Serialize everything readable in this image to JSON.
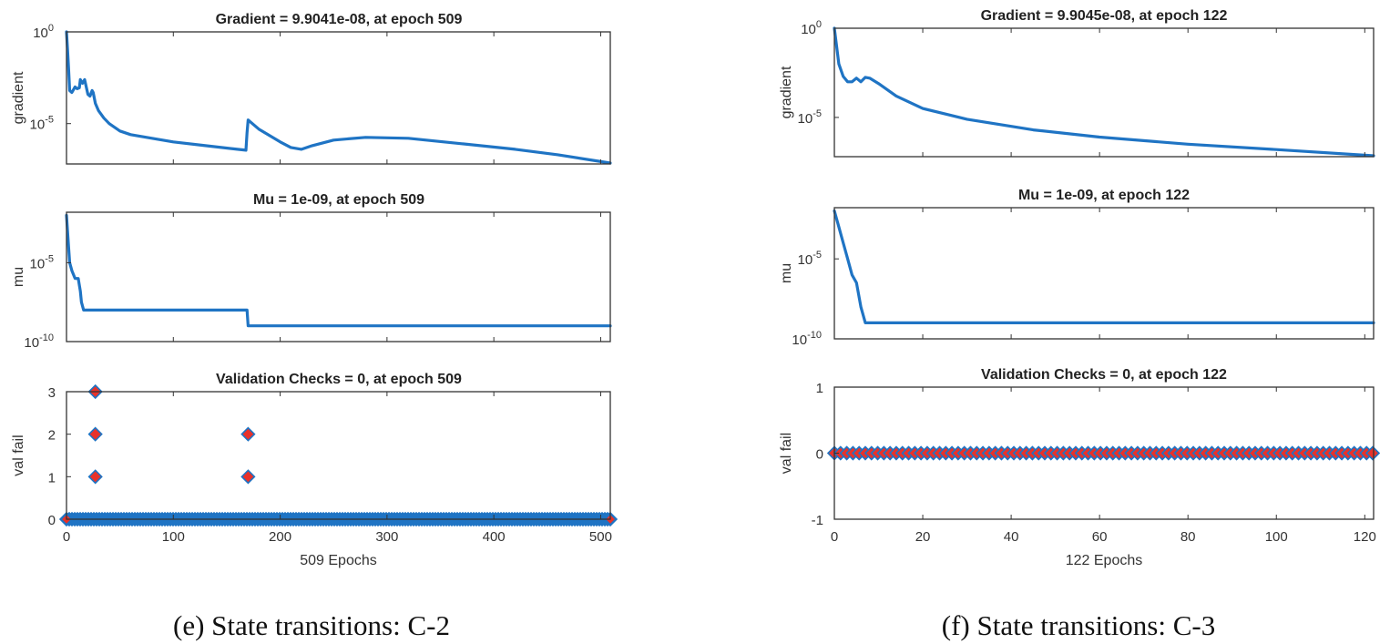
{
  "chart_data": [
    {
      "id": "e",
      "caption": "(e) State transitions: C-2",
      "xlim": [
        0,
        509
      ],
      "xticks": [
        0,
        100,
        200,
        300,
        400,
        500
      ],
      "xlabel": "509 Epochs",
      "subplots": [
        {
          "type": "line",
          "scale": "log",
          "title": "Gradient = 9.9041e-08, at epoch 509",
          "ylabel": "gradient",
          "ylim_exp": [
            -7.2,
            0
          ],
          "yticks": [
            {
              "base": "10",
              "exp": "0",
              "value_exp": 0
            },
            {
              "base": "10",
              "exp": "-5",
              "value_exp": -5
            }
          ],
          "x": [
            0,
            1,
            2,
            3,
            5,
            8,
            10,
            12,
            13,
            15,
            17,
            20,
            22,
            24,
            25,
            27,
            30,
            35,
            40,
            50,
            60,
            80,
            100,
            130,
            160,
            168,
            169,
            170,
            172,
            180,
            200,
            210,
            220,
            230,
            250,
            280,
            320,
            370,
            420,
            460,
            509
          ],
          "value_exp": [
            0,
            -1,
            -2,
            -3.2,
            -3.3,
            -3,
            -3.1,
            -3.05,
            -2.6,
            -2.8,
            -2.6,
            -3.4,
            -3.5,
            -3.2,
            -3.3,
            -3.9,
            -4.3,
            -4.7,
            -5,
            -5.4,
            -5.6,
            -5.8,
            -6,
            -6.2,
            -6.4,
            -6.45,
            -5.5,
            -4.8,
            -4.9,
            -5.3,
            -6,
            -6.3,
            -6.4,
            -6.2,
            -5.9,
            -5.75,
            -5.8,
            -6.1,
            -6.4,
            -6.7,
            -7.15
          ]
        },
        {
          "type": "line",
          "scale": "log",
          "title": "Mu = 1e-09, at epoch 509",
          "ylabel": "mu",
          "ylim_exp": [
            -10,
            -1.8
          ],
          "yticks": [
            {
              "base": "10",
              "exp": "-5",
              "value_exp": -5
            },
            {
              "base": "10",
              "exp": "-10",
              "value_exp": -10
            }
          ],
          "x": [
            0,
            2,
            3,
            5,
            8,
            11,
            13,
            14,
            16,
            100,
            168,
            169,
            170,
            200,
            300,
            400,
            509
          ],
          "value_exp": [
            -2,
            -4,
            -5,
            -5.5,
            -6,
            -6,
            -6.8,
            -7.5,
            -8,
            -8,
            -8,
            -8,
            -9,
            -9,
            -9,
            -9,
            -9
          ]
        },
        {
          "type": "scatter",
          "scale": "linear",
          "title": "Validation Checks = 0, at epoch 509",
          "ylabel": "val fail",
          "ylim": [
            0,
            3
          ],
          "yticks": [
            0,
            1,
            2,
            3
          ],
          "points": [
            {
              "x": 27,
              "y": 1
            },
            {
              "x": 27,
              "y": 2
            },
            {
              "x": 27,
              "y": 3
            },
            {
              "x": 170,
              "y": 1
            },
            {
              "x": 170,
              "y": 2
            }
          ],
          "zero_band": {
            "y": 0,
            "from": 0,
            "to": 509,
            "marker_every": 2
          },
          "red_zero_points": [
            {
              "x": 0,
              "y": 0
            },
            {
              "x": 509,
              "y": 0
            }
          ]
        }
      ]
    },
    {
      "id": "f",
      "caption": "(f) State transitions: C-3",
      "xlim": [
        0,
        122
      ],
      "xticks": [
        0,
        20,
        40,
        60,
        80,
        100,
        120
      ],
      "xlabel": "122 Epochs",
      "subplots": [
        {
          "type": "line",
          "scale": "log",
          "title": "Gradient = 9.9045e-08, at epoch 122",
          "ylabel": "gradient",
          "ylim_exp": [
            -7.2,
            0
          ],
          "yticks": [
            {
              "base": "10",
              "exp": "0",
              "value_exp": 0
            },
            {
              "base": "10",
              "exp": "-5",
              "value_exp": -5
            }
          ],
          "x": [
            0,
            1,
            2,
            3,
            4,
            5,
            6,
            7,
            8,
            10,
            14,
            20,
            30,
            45,
            60,
            80,
            100,
            122
          ],
          "value_exp": [
            0,
            -2,
            -2.7,
            -3,
            -3,
            -2.8,
            -3.0,
            -2.75,
            -2.8,
            -3.1,
            -3.8,
            -4.5,
            -5.1,
            -5.7,
            -6.1,
            -6.5,
            -6.8,
            -7.15
          ]
        },
        {
          "type": "line",
          "scale": "log",
          "title": "Mu = 1e-09, at epoch 122",
          "ylabel": "mu",
          "ylim_exp": [
            -10,
            -1.8
          ],
          "yticks": [
            {
              "base": "10",
              "exp": "-5",
              "value_exp": -5
            },
            {
              "base": "10",
              "exp": "-10",
              "value_exp": -10
            }
          ],
          "x": [
            0,
            1,
            2,
            3,
            4,
            5,
            6,
            7,
            50,
            122
          ],
          "value_exp": [
            -2,
            -3,
            -4,
            -5,
            -6,
            -6.5,
            -8,
            -9,
            -9,
            -9
          ]
        },
        {
          "type": "scatter",
          "scale": "linear",
          "title": "Validation Checks = 0, at epoch 122",
          "ylabel": "val fail",
          "ylim": [
            -1,
            1
          ],
          "yticks": [
            -1,
            0,
            1
          ],
          "points": [],
          "zero_band": {
            "y": 0,
            "from": 0,
            "to": 122,
            "marker_every": 1.4
          },
          "red_zero_points": "all"
        }
      ]
    }
  ]
}
